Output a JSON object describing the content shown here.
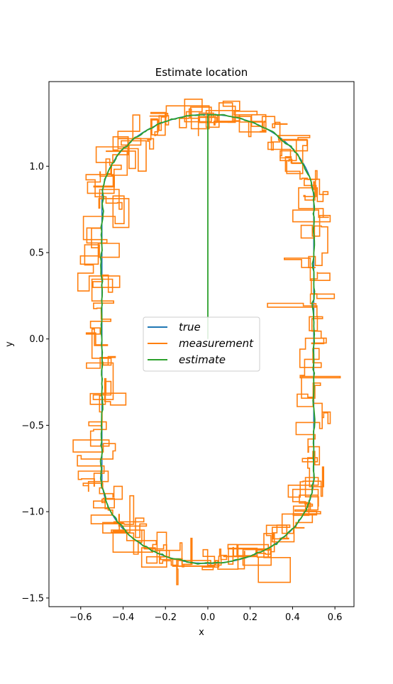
{
  "chart_data": {
    "type": "line",
    "title": "Estimate location",
    "xlabel": "x",
    "ylabel": "y",
    "xlim": [
      -0.75,
      0.69
    ],
    "ylim": [
      -1.55,
      1.49
    ],
    "xticks": [
      -0.6,
      -0.4,
      -0.2,
      0.0,
      0.2,
      0.4,
      0.6
    ],
    "xtick_labels": [
      "−0.6",
      "−0.4",
      "−0.2",
      "0.0",
      "0.2",
      "0.4",
      "0.6"
    ],
    "yticks": [
      -1.5,
      -1.0,
      -0.5,
      0.0,
      0.5,
      1.0
    ],
    "ytick_labels": [
      "−1.5",
      "−1.0",
      "−0.5",
      "0.0",
      "0.5",
      "1.0"
    ],
    "grid": false,
    "legend_position": "center",
    "series": [
      {
        "name": "true",
        "color": "#1f77b4",
        "shape": "stadium",
        "half_width": 0.5,
        "straight_half_height": 0.8,
        "end_radius_x": 0.5,
        "end_radius_y": 0.5
      },
      {
        "name": "measurement",
        "color": "#ff7f0e",
        "shape": "noisy-step",
        "noise_std": 0.06,
        "around": "true"
      },
      {
        "name": "estimate",
        "color": "#2ca02c",
        "shape": "filtered",
        "start": [
          0.0,
          0.0
        ],
        "first_estimate": [
          0.0,
          1.3
        ]
      }
    ]
  }
}
